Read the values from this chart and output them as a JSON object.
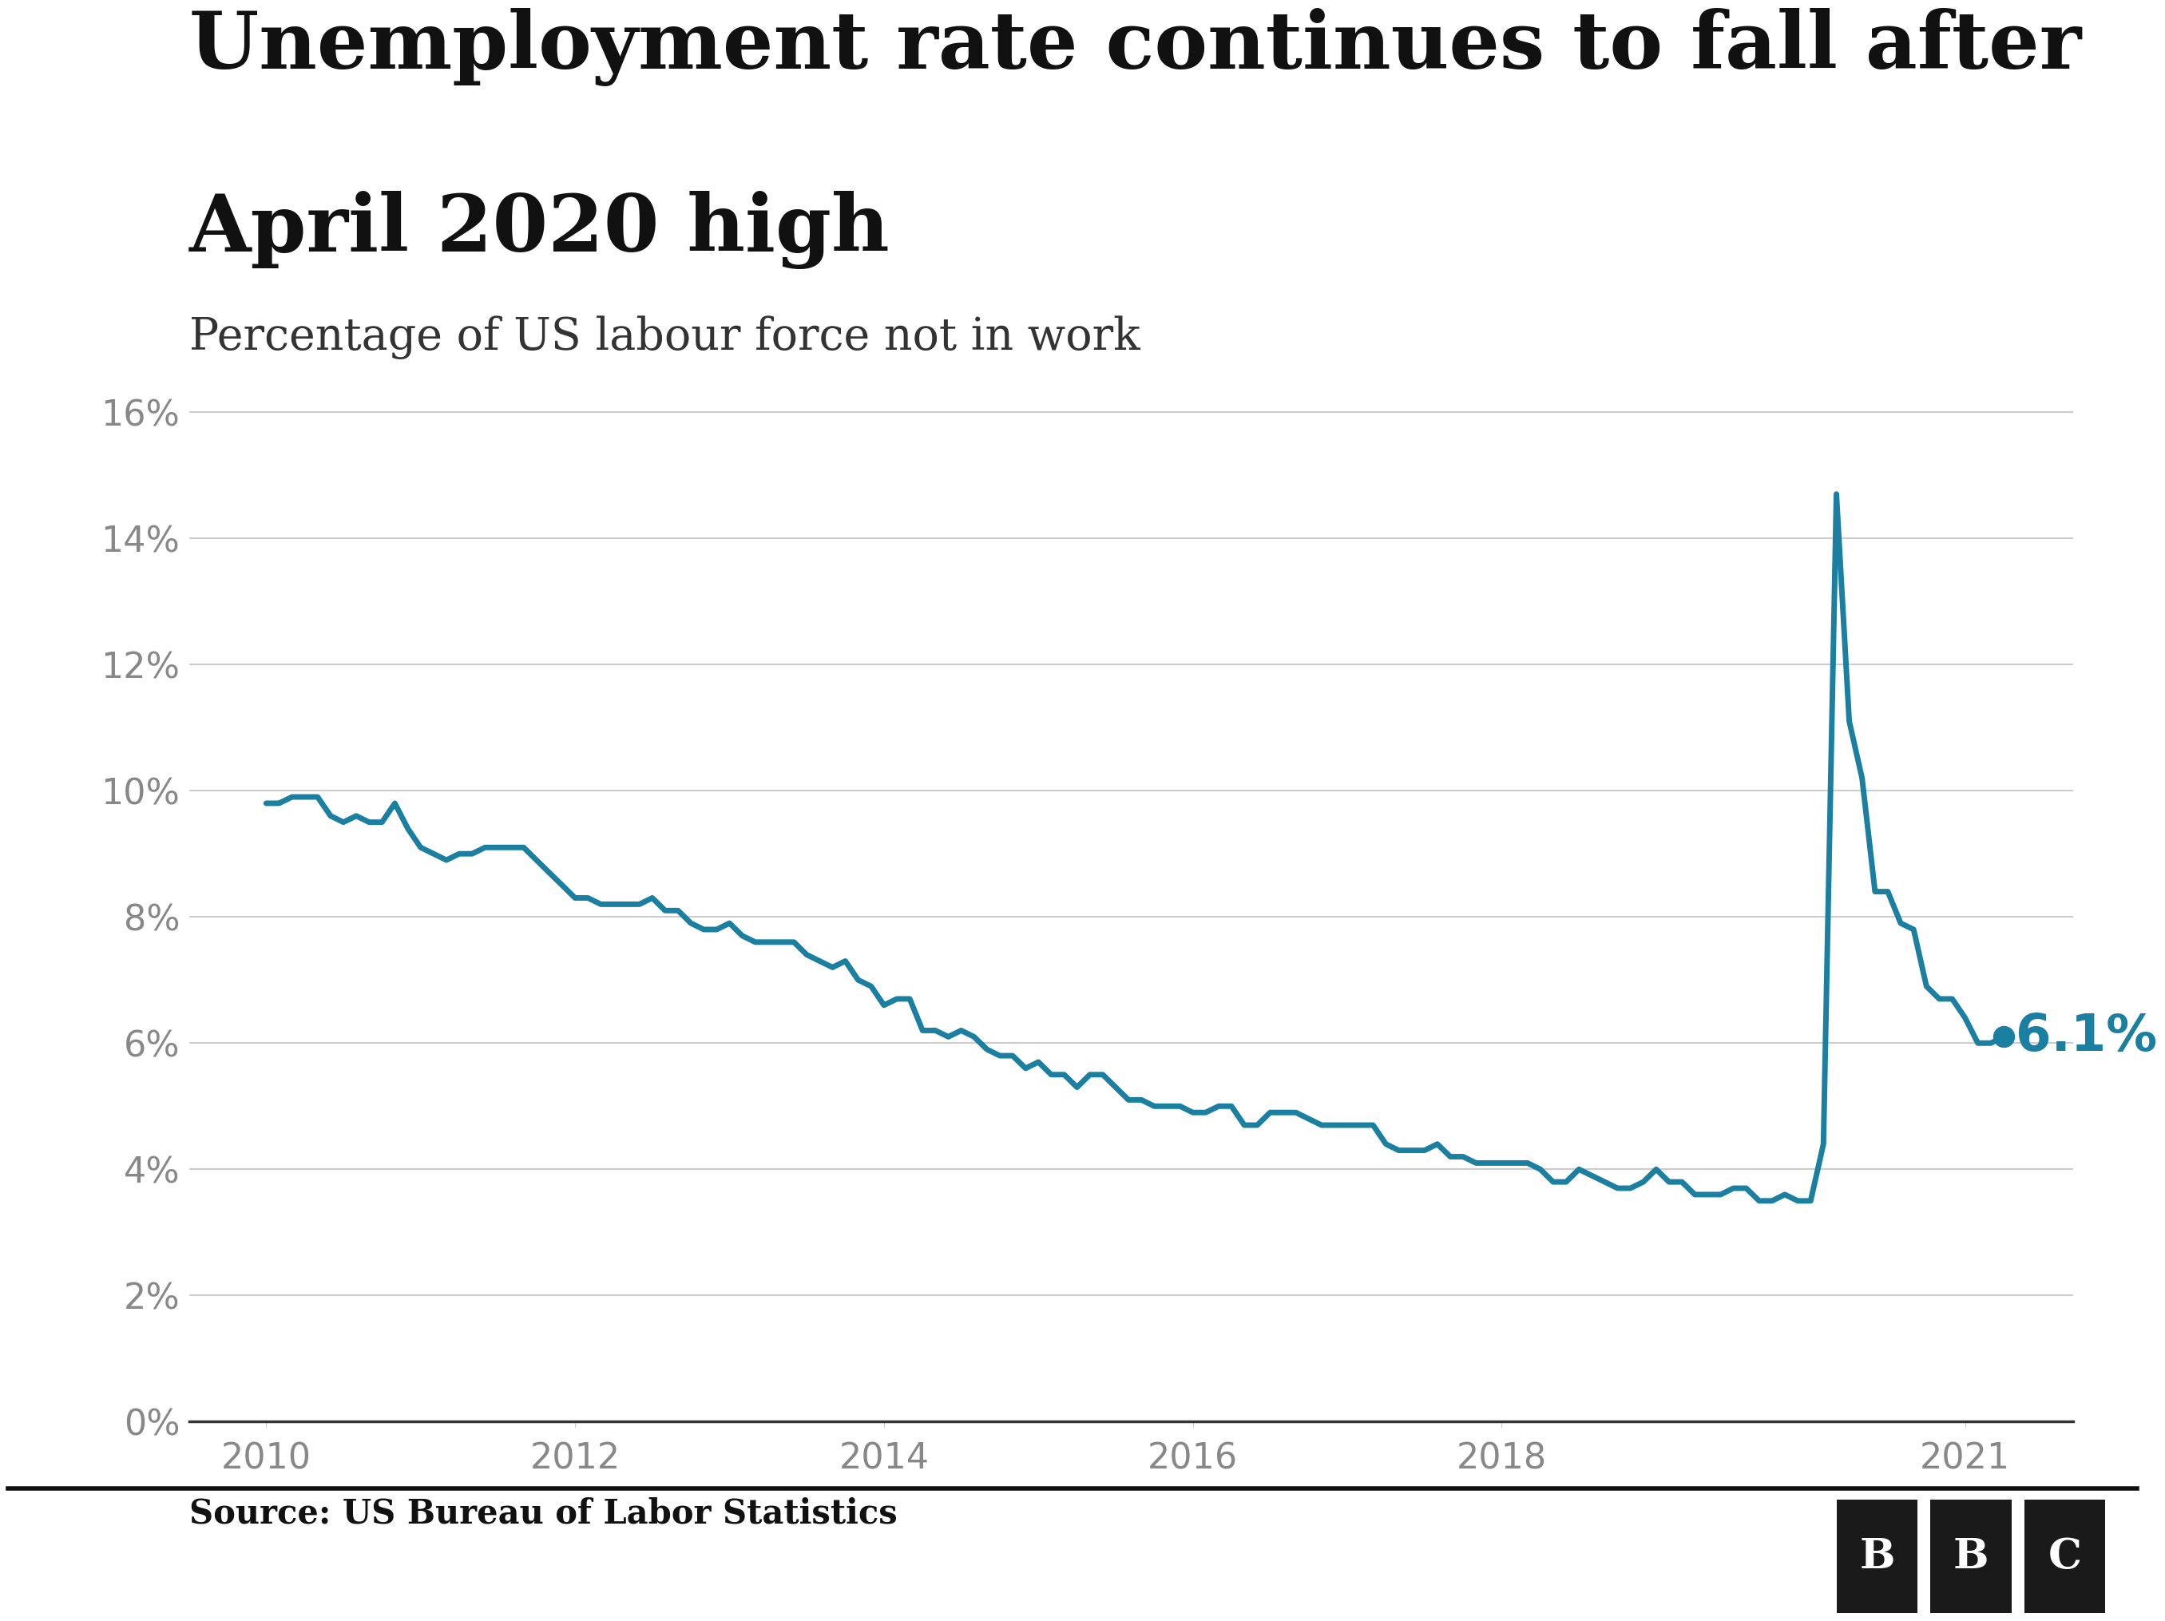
{
  "title_line1": "Unemployment rate continues to fall after",
  "title_line2": "April 2020 high",
  "subtitle": "Percentage of US labour force not in work",
  "source": "Source: US Bureau of Labor Statistics",
  "line_color": "#1a7fa0",
  "background_color": "#ffffff",
  "annotation_label": "6.1%",
  "annotation_color": "#1a7fa0",
  "ylim": [
    0,
    17
  ],
  "yticks": [
    0,
    2,
    4,
    6,
    8,
    10,
    12,
    14,
    16
  ],
  "xticks": [
    2010,
    2012,
    2014,
    2016,
    2018,
    2021
  ],
  "xlim": [
    2009.5,
    2021.7
  ],
  "data": {
    "dates": [
      2010.0,
      2010.083,
      2010.167,
      2010.25,
      2010.333,
      2010.417,
      2010.5,
      2010.583,
      2010.667,
      2010.75,
      2010.833,
      2010.917,
      2011.0,
      2011.083,
      2011.167,
      2011.25,
      2011.333,
      2011.417,
      2011.5,
      2011.583,
      2011.667,
      2011.75,
      2011.833,
      2011.917,
      2012.0,
      2012.083,
      2012.167,
      2012.25,
      2012.333,
      2012.417,
      2012.5,
      2012.583,
      2012.667,
      2012.75,
      2012.833,
      2012.917,
      2013.0,
      2013.083,
      2013.167,
      2013.25,
      2013.333,
      2013.417,
      2013.5,
      2013.583,
      2013.667,
      2013.75,
      2013.833,
      2013.917,
      2014.0,
      2014.083,
      2014.167,
      2014.25,
      2014.333,
      2014.417,
      2014.5,
      2014.583,
      2014.667,
      2014.75,
      2014.833,
      2014.917,
      2015.0,
      2015.083,
      2015.167,
      2015.25,
      2015.333,
      2015.417,
      2015.5,
      2015.583,
      2015.667,
      2015.75,
      2015.833,
      2015.917,
      2016.0,
      2016.083,
      2016.167,
      2016.25,
      2016.333,
      2016.417,
      2016.5,
      2016.583,
      2016.667,
      2016.75,
      2016.833,
      2016.917,
      2017.0,
      2017.083,
      2017.167,
      2017.25,
      2017.333,
      2017.417,
      2017.5,
      2017.583,
      2017.667,
      2017.75,
      2017.833,
      2017.917,
      2018.0,
      2018.083,
      2018.167,
      2018.25,
      2018.333,
      2018.417,
      2018.5,
      2018.583,
      2018.667,
      2018.75,
      2018.833,
      2018.917,
      2019.0,
      2019.083,
      2019.167,
      2019.25,
      2019.333,
      2019.417,
      2019.5,
      2019.583,
      2019.667,
      2019.75,
      2019.833,
      2019.917,
      2020.0,
      2020.083,
      2020.167,
      2020.25,
      2020.333,
      2020.417,
      2020.5,
      2020.583,
      2020.667,
      2020.75,
      2020.833,
      2020.917,
      2021.0,
      2021.083,
      2021.167,
      2021.25
    ],
    "values": [
      9.8,
      9.8,
      9.9,
      9.9,
      9.9,
      9.6,
      9.5,
      9.6,
      9.5,
      9.5,
      9.8,
      9.4,
      9.1,
      9.0,
      8.9,
      9.0,
      9.0,
      9.1,
      9.1,
      9.1,
      9.1,
      8.9,
      8.7,
      8.5,
      8.3,
      8.3,
      8.2,
      8.2,
      8.2,
      8.2,
      8.3,
      8.1,
      8.1,
      7.9,
      7.8,
      7.8,
      7.9,
      7.7,
      7.6,
      7.6,
      7.6,
      7.6,
      7.4,
      7.3,
      7.2,
      7.3,
      7.0,
      6.9,
      6.6,
      6.7,
      6.7,
      6.2,
      6.2,
      6.1,
      6.2,
      6.1,
      5.9,
      5.8,
      5.8,
      5.6,
      5.7,
      5.5,
      5.5,
      5.3,
      5.5,
      5.5,
      5.3,
      5.1,
      5.1,
      5.0,
      5.0,
      5.0,
      4.9,
      4.9,
      5.0,
      5.0,
      4.7,
      4.7,
      4.9,
      4.9,
      4.9,
      4.8,
      4.7,
      4.7,
      4.7,
      4.7,
      4.7,
      4.4,
      4.3,
      4.3,
      4.3,
      4.4,
      4.2,
      4.2,
      4.1,
      4.1,
      4.1,
      4.1,
      4.1,
      4.0,
      3.8,
      3.8,
      4.0,
      3.9,
      3.8,
      3.7,
      3.7,
      3.8,
      4.0,
      3.8,
      3.8,
      3.6,
      3.6,
      3.6,
      3.7,
      3.7,
      3.5,
      3.5,
      3.6,
      3.5,
      3.5,
      4.4,
      14.7,
      11.1,
      10.2,
      8.4,
      8.4,
      7.9,
      7.8,
      6.9,
      6.7,
      6.7,
      6.4,
      6.0,
      6.0,
      6.1
    ]
  }
}
